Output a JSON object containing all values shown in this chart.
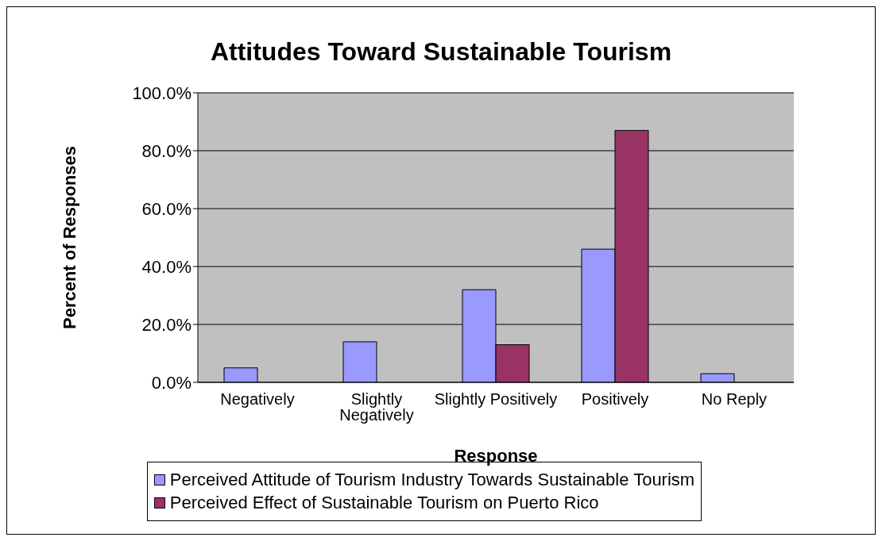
{
  "chart_data": {
    "type": "bar",
    "title": "Attitudes Toward Sustainable Tourism",
    "xlabel": "Response",
    "ylabel": "Percent of Responses",
    "categories": [
      "Negatively",
      "Slightly Negatively",
      "Slightly Positively",
      "Positively",
      "No Reply"
    ],
    "series": [
      {
        "name": "Perceived Attitude of Tourism Industry Towards Sustainable Tourism",
        "color": "#9999ff",
        "values": [
          5,
          14,
          32,
          46,
          3
        ]
      },
      {
        "name": "Perceived Effect of Sustainable Tourism on Puerto Rico",
        "color": "#993366",
        "values": [
          0,
          0,
          13,
          87,
          0
        ]
      }
    ],
    "ylim": [
      0,
      100
    ],
    "yticks": [
      {
        "value": 0,
        "label": "0.0%"
      },
      {
        "value": 20,
        "label": "20.0%"
      },
      {
        "value": 40,
        "label": "40.0%"
      },
      {
        "value": 60,
        "label": "60.0%"
      },
      {
        "value": 80,
        "label": "80.0%"
      },
      {
        "value": 100,
        "label": "100.0%"
      }
    ],
    "grid": "y",
    "legend": "bottom"
  }
}
